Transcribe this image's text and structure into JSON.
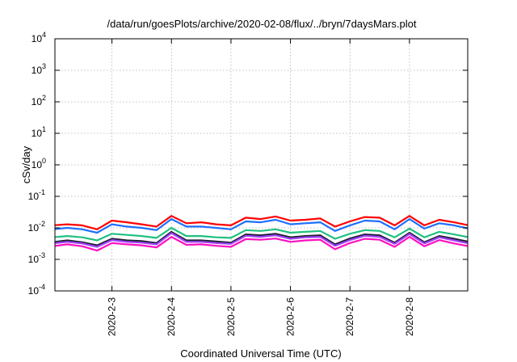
{
  "chart_data": {
    "type": "line",
    "title": "/data/run/goesPlots/archive/2020-02-08/flux/../bryn/7daysMars.plot",
    "xlabel": "Coordinated Universal Time (UTC)",
    "ylabel": "cSv/day",
    "y_scale": "log",
    "ylim": [
      0.0001,
      10000
    ],
    "y_ticks": [
      {
        "value": 0.0001,
        "base": "10",
        "exp": "-4"
      },
      {
        "value": 0.001,
        "base": "10",
        "exp": "-3"
      },
      {
        "value": 0.01,
        "base": "10",
        "exp": "-2"
      },
      {
        "value": 0.1,
        "base": "10",
        "exp": "-1"
      },
      {
        "value": 1,
        "base": "10",
        "exp": "0"
      },
      {
        "value": 10,
        "base": "10",
        "exp": "1"
      },
      {
        "value": 100,
        "base": "10",
        "exp": "2"
      },
      {
        "value": 1000,
        "base": "10",
        "exp": "3"
      },
      {
        "value": 10000,
        "base": "10",
        "exp": "4"
      }
    ],
    "x_range": [
      "2020-02-02T01:00",
      "2020-02-08T23:30"
    ],
    "x_ticks": [
      "2020-2-3",
      "2020-2-4",
      "2020-2-5",
      "2020-2-6",
      "2020-2-7",
      "2020-2-8"
    ],
    "x_tick_dates": [
      "2020-02-03",
      "2020-02-04",
      "2020-02-05",
      "2020-02-06",
      "2020-02-07",
      "2020-02-08"
    ],
    "grid": true,
    "x": [
      "2020-02-02T00:00",
      "2020-02-02T06:00",
      "2020-02-02T12:00",
      "2020-02-02T18:00",
      "2020-02-03T00:00",
      "2020-02-03T06:00",
      "2020-02-03T12:00",
      "2020-02-03T18:00",
      "2020-02-04T00:00",
      "2020-02-04T06:00",
      "2020-02-04T12:00",
      "2020-02-04T18:00",
      "2020-02-05T00:00",
      "2020-02-05T06:00",
      "2020-02-05T12:00",
      "2020-02-05T18:00",
      "2020-02-06T00:00",
      "2020-02-06T06:00",
      "2020-02-06T12:00",
      "2020-02-06T18:00",
      "2020-02-07T00:00",
      "2020-02-07T06:00",
      "2020-02-07T12:00",
      "2020-02-07T18:00",
      "2020-02-08T00:00",
      "2020-02-08T06:00",
      "2020-02-08T12:00",
      "2020-02-08T18:00",
      "2020-02-09T00:00"
    ],
    "series": [
      {
        "color": "#ff0000",
        "values": [
          0.012,
          0.013,
          0.012,
          0.009,
          0.017,
          0.015,
          0.013,
          0.011,
          0.024,
          0.014,
          0.015,
          0.013,
          0.012,
          0.021,
          0.019,
          0.023,
          0.017,
          0.018,
          0.02,
          0.011,
          0.016,
          0.022,
          0.021,
          0.012,
          0.024,
          0.012,
          0.018,
          0.015,
          0.012
        ]
      },
      {
        "color": "#1f6fff",
        "values": [
          0.009,
          0.01,
          0.009,
          0.007,
          0.013,
          0.011,
          0.01,
          0.0085,
          0.019,
          0.011,
          0.011,
          0.01,
          0.009,
          0.016,
          0.015,
          0.018,
          0.013,
          0.014,
          0.015,
          0.008,
          0.012,
          0.017,
          0.016,
          0.009,
          0.019,
          0.0095,
          0.014,
          0.012,
          0.0095
        ]
      },
      {
        "color": "#20c080",
        "values": [
          0.005,
          0.0055,
          0.005,
          0.004,
          0.0065,
          0.006,
          0.0055,
          0.0048,
          0.01,
          0.0055,
          0.0055,
          0.005,
          0.0048,
          0.0085,
          0.008,
          0.009,
          0.007,
          0.0075,
          0.008,
          0.0045,
          0.0065,
          0.0085,
          0.008,
          0.005,
          0.0095,
          0.005,
          0.0075,
          0.0062,
          0.005
        ]
      },
      {
        "color": "#202030",
        "values": [
          0.0035,
          0.004,
          0.0035,
          0.0028,
          0.0045,
          0.004,
          0.0038,
          0.0033,
          0.0075,
          0.004,
          0.004,
          0.0037,
          0.0034,
          0.0062,
          0.0058,
          0.0065,
          0.005,
          0.0055,
          0.0058,
          0.003,
          0.0046,
          0.0062,
          0.0058,
          0.0034,
          0.007,
          0.0035,
          0.0055,
          0.0045,
          0.0036
        ]
      },
      {
        "color": "#a040ff",
        "values": [
          0.0032,
          0.0036,
          0.0032,
          0.0025,
          0.0041,
          0.0036,
          0.0034,
          0.003,
          0.0068,
          0.0036,
          0.0036,
          0.0033,
          0.0031,
          0.0056,
          0.0052,
          0.0058,
          0.0045,
          0.005,
          0.0052,
          0.0027,
          0.0041,
          0.0056,
          0.0052,
          0.0031,
          0.0064,
          0.0032,
          0.005,
          0.004,
          0.0032
        ]
      },
      {
        "color": "#ff10c0",
        "values": [
          0.0026,
          0.003,
          0.0026,
          0.0019,
          0.0033,
          0.003,
          0.0028,
          0.0024,
          0.0052,
          0.0029,
          0.003,
          0.0027,
          0.0025,
          0.0044,
          0.0042,
          0.0046,
          0.0036,
          0.004,
          0.0042,
          0.0021,
          0.0033,
          0.0045,
          0.0042,
          0.0025,
          0.0052,
          0.0026,
          0.0041,
          0.0032,
          0.0026
        ]
      }
    ]
  }
}
